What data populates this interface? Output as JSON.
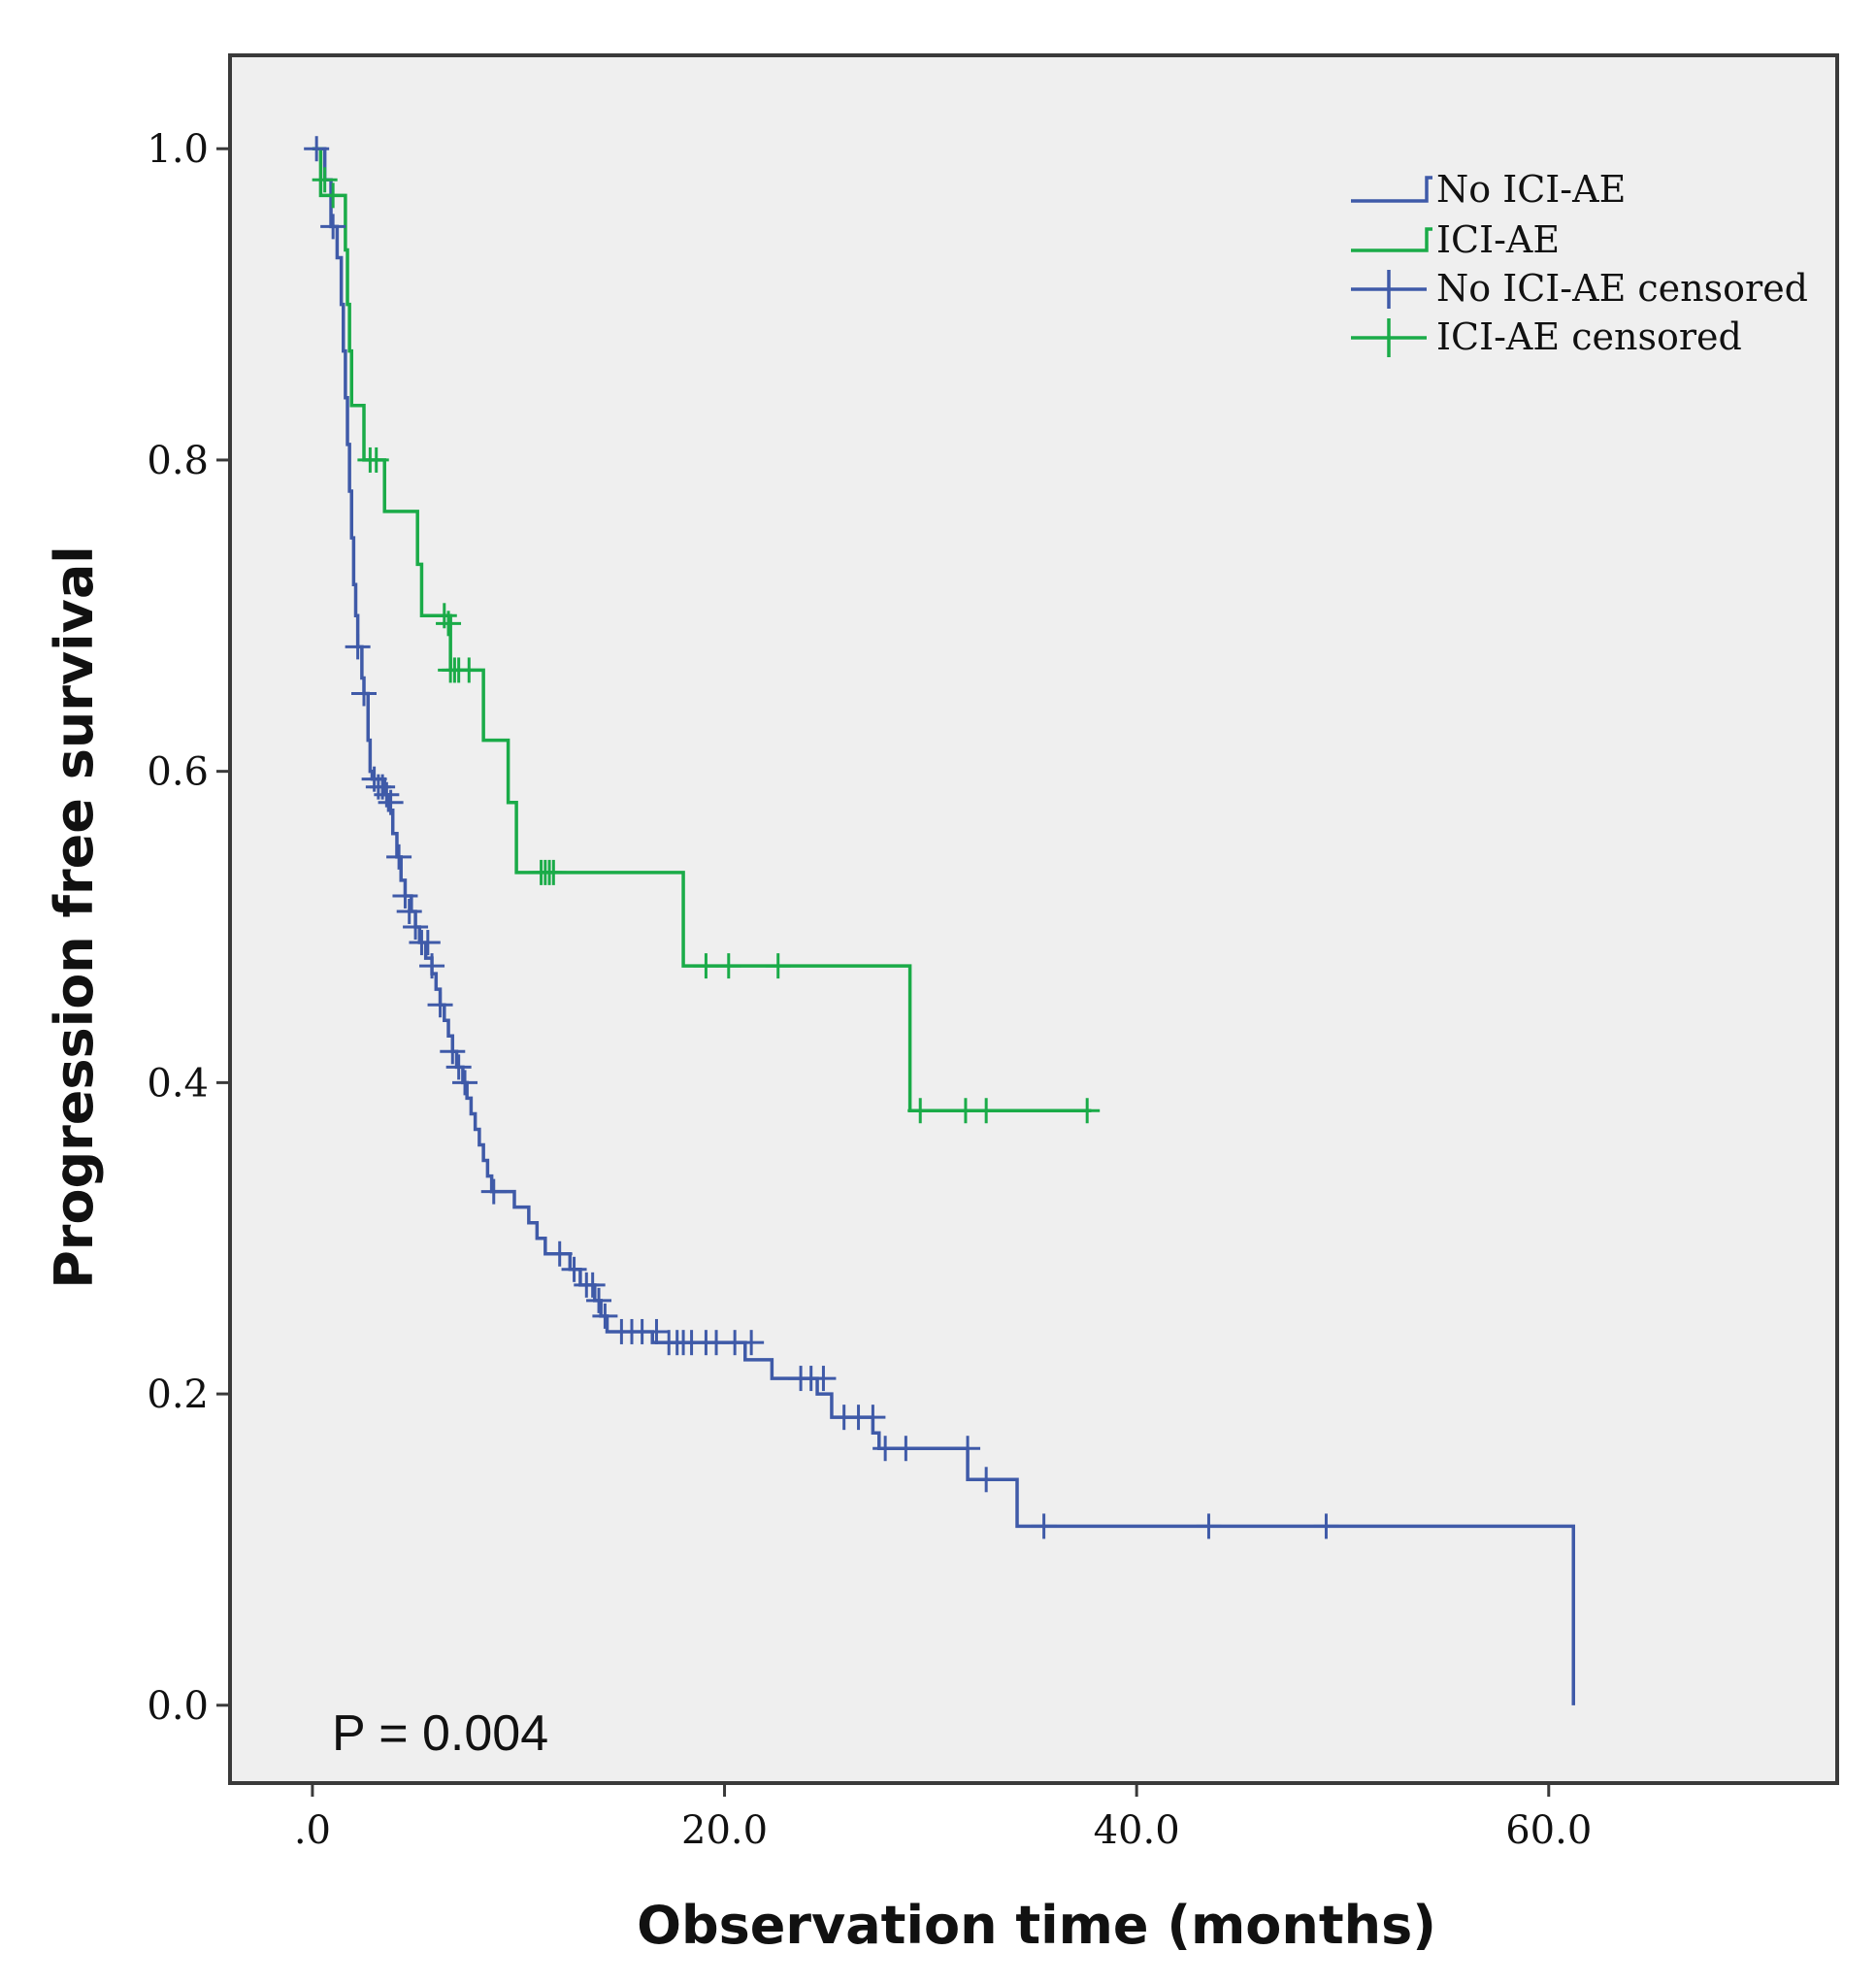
{
  "chart_data": {
    "type": "line",
    "subtype": "kaplan-meier",
    "xlabel": "Observation time (months)",
    "ylabel": "Progression free survival",
    "xlim": [
      -4,
      74
    ],
    "ylim": [
      -0.05,
      1.06
    ],
    "x_ticks": [
      0,
      20,
      40,
      60
    ],
    "x_tick_labels": [
      ".0",
      "20.0",
      "40.0",
      "60.0"
    ],
    "y_ticks": [
      0,
      0.2,
      0.4,
      0.6,
      0.8,
      1.0
    ],
    "y_tick_labels": [
      "0.0",
      "0.2",
      "0.4",
      "0.6",
      "0.8",
      "1.0"
    ],
    "grid": false,
    "background": "#efefef",
    "legend_position": "top-right",
    "legend": [
      "No ICI-AE",
      "ICI-AE",
      "No ICI-AE censored",
      "ICI-AE censored"
    ],
    "annotation": "P = 0.004",
    "series": [
      {
        "name": "No ICI-AE",
        "color": "#3f5aa8",
        "steps": [
          [
            0,
            1.0
          ],
          [
            0.6,
            0.98
          ],
          [
            0.9,
            0.95
          ],
          [
            1.2,
            0.93
          ],
          [
            1.4,
            0.9
          ],
          [
            1.5,
            0.87
          ],
          [
            1.6,
            0.84
          ],
          [
            1.7,
            0.81
          ],
          [
            1.8,
            0.78
          ],
          [
            1.9,
            0.75
          ],
          [
            2.0,
            0.72
          ],
          [
            2.1,
            0.7
          ],
          [
            2.2,
            0.68
          ],
          [
            2.4,
            0.66
          ],
          [
            2.5,
            0.65
          ],
          [
            2.7,
            0.62
          ],
          [
            2.8,
            0.6
          ],
          [
            2.9,
            0.595
          ],
          [
            3.5,
            0.585
          ],
          [
            3.7,
            0.575
          ],
          [
            3.9,
            0.56
          ],
          [
            4.1,
            0.545
          ],
          [
            4.3,
            0.53
          ],
          [
            4.5,
            0.52
          ],
          [
            4.8,
            0.51
          ],
          [
            5.0,
            0.5
          ],
          [
            5.2,
            0.49
          ],
          [
            5.5,
            0.48
          ],
          [
            5.8,
            0.47
          ],
          [
            6.0,
            0.46
          ],
          [
            6.2,
            0.45
          ],
          [
            6.4,
            0.44
          ],
          [
            6.6,
            0.43
          ],
          [
            6.8,
            0.42
          ],
          [
            7.0,
            0.41
          ],
          [
            7.3,
            0.4
          ],
          [
            7.5,
            0.39
          ],
          [
            7.7,
            0.38
          ],
          [
            7.9,
            0.37
          ],
          [
            8.1,
            0.36
          ],
          [
            8.3,
            0.35
          ],
          [
            8.5,
            0.34
          ],
          [
            8.7,
            0.33
          ],
          [
            9.8,
            0.32
          ],
          [
            10.5,
            0.31
          ],
          [
            10.9,
            0.3
          ],
          [
            11.3,
            0.29
          ],
          [
            12.5,
            0.28
          ],
          [
            13.0,
            0.27
          ],
          [
            13.7,
            0.26
          ],
          [
            14.0,
            0.25
          ],
          [
            14.3,
            0.24
          ],
          [
            16.5,
            0.233
          ],
          [
            21.0,
            0.222
          ],
          [
            22.3,
            0.21
          ],
          [
            24.5,
            0.2
          ],
          [
            25.2,
            0.185
          ],
          [
            27.2,
            0.175
          ],
          [
            27.5,
            0.165
          ],
          [
            31.8,
            0.145
          ],
          [
            34.2,
            0.115
          ],
          [
            61.2,
            0.0
          ]
        ],
        "end": 61.2,
        "censored": [
          [
            0.2,
            1.0
          ],
          [
            1.0,
            0.95
          ],
          [
            2.2,
            0.68
          ],
          [
            2.5,
            0.65
          ],
          [
            3.0,
            0.595
          ],
          [
            3.2,
            0.59
          ],
          [
            3.4,
            0.59
          ],
          [
            3.6,
            0.585
          ],
          [
            3.8,
            0.58
          ],
          [
            4.2,
            0.545
          ],
          [
            4.5,
            0.52
          ],
          [
            4.7,
            0.51
          ],
          [
            5.0,
            0.5
          ],
          [
            5.3,
            0.49
          ],
          [
            5.6,
            0.49
          ],
          [
            5.8,
            0.475
          ],
          [
            6.2,
            0.45
          ],
          [
            6.8,
            0.42
          ],
          [
            7.1,
            0.41
          ],
          [
            7.4,
            0.4
          ],
          [
            8.8,
            0.33
          ],
          [
            12.0,
            0.29
          ],
          [
            12.7,
            0.28
          ],
          [
            13.3,
            0.27
          ],
          [
            13.6,
            0.27
          ],
          [
            13.9,
            0.26
          ],
          [
            14.2,
            0.25
          ],
          [
            15.0,
            0.24
          ],
          [
            15.5,
            0.24
          ],
          [
            16.0,
            0.24
          ],
          [
            16.7,
            0.24
          ],
          [
            17.3,
            0.233
          ],
          [
            17.7,
            0.233
          ],
          [
            18.0,
            0.233
          ],
          [
            18.4,
            0.233
          ],
          [
            19.1,
            0.233
          ],
          [
            19.6,
            0.233
          ],
          [
            20.5,
            0.233
          ],
          [
            21.3,
            0.233
          ],
          [
            23.7,
            0.21
          ],
          [
            24.2,
            0.21
          ],
          [
            24.8,
            0.21
          ],
          [
            25.8,
            0.185
          ],
          [
            26.5,
            0.185
          ],
          [
            27.2,
            0.185
          ],
          [
            27.8,
            0.165
          ],
          [
            28.8,
            0.165
          ],
          [
            31.8,
            0.165
          ],
          [
            32.7,
            0.145
          ],
          [
            35.5,
            0.115
          ],
          [
            43.5,
            0.115
          ],
          [
            49.2,
            0.115
          ]
        ]
      },
      {
        "name": "ICI-AE",
        "color": "#1aab48",
        "steps": [
          [
            0,
            1.0
          ],
          [
            0.4,
            0.97
          ],
          [
            1.6,
            0.935
          ],
          [
            1.7,
            0.9
          ],
          [
            1.8,
            0.87
          ],
          [
            1.9,
            0.835
          ],
          [
            2.5,
            0.8
          ],
          [
            3.5,
            0.767
          ],
          [
            5.1,
            0.733
          ],
          [
            5.3,
            0.7
          ],
          [
            6.7,
            0.665
          ],
          [
            8.3,
            0.62
          ],
          [
            9.5,
            0.58
          ],
          [
            9.9,
            0.535
          ],
          [
            18.0,
            0.475
          ],
          [
            29.0,
            0.382
          ]
        ],
        "end": 37.8,
        "censored": [
          [
            0.6,
            0.98
          ],
          [
            1.0,
            0.97
          ],
          [
            2.8,
            0.8
          ],
          [
            3.1,
            0.8
          ],
          [
            6.4,
            0.7
          ],
          [
            6.6,
            0.695
          ],
          [
            6.7,
            0.665
          ],
          [
            6.9,
            0.665
          ],
          [
            7.1,
            0.665
          ],
          [
            7.6,
            0.665
          ],
          [
            11.1,
            0.535
          ],
          [
            11.3,
            0.535
          ],
          [
            11.5,
            0.535
          ],
          [
            11.7,
            0.535
          ],
          [
            19.1,
            0.475
          ],
          [
            20.2,
            0.475
          ],
          [
            22.6,
            0.475
          ],
          [
            29.5,
            0.382
          ],
          [
            31.7,
            0.382
          ],
          [
            32.7,
            0.382
          ],
          [
            37.6,
            0.382
          ]
        ]
      }
    ]
  }
}
